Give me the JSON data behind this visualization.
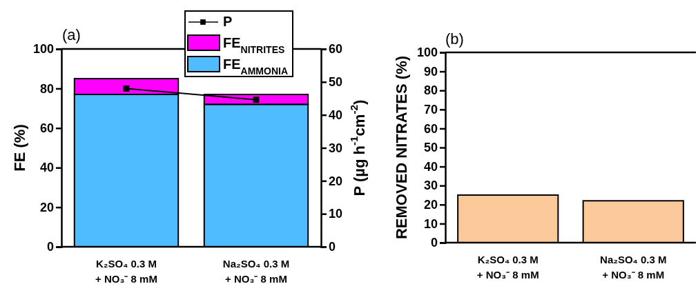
{
  "chart_data": [
    {
      "type": "bar",
      "title": "(a)",
      "categories": [
        "K₂SO₄ 0.3 M\n+ NO₃⁻ 8 mM",
        "Na₂SO₄ 0.3 M\n+ NO₃⁻ 8 mM"
      ],
      "stacked": true,
      "series": [
        {
          "name": "FE$_{AMMONIA}$",
          "color": "#4fbcff",
          "values": [
            77,
            72
          ]
        },
        {
          "name": "FE$_{NITRITES}$",
          "color": "#ff00ff",
          "values": [
            8,
            5
          ]
        },
        {
          "name": "P",
          "type": "line",
          "axis": "y2",
          "color": "#000000",
          "values": [
            48,
            44.6
          ]
        }
      ],
      "ylim": [
        0,
        100
      ],
      "yticks": [
        0,
        20,
        40,
        60,
        80,
        100
      ],
      "y2lim": [
        0,
        60
      ],
      "y2ticks": [
        0,
        10,
        20,
        30,
        40,
        50,
        60
      ],
      "ylabel": "FE (%)",
      "y2label": "P (µg h$^{-1}$cm$^{-2}$)",
      "legend": "top",
      "marker": "square"
    },
    {
      "type": "bar",
      "title": "(b)",
      "categories": [
        "K₂SO₄ 0.3 M\n+ NO₃⁻ 8 mM",
        "Na₂SO₄ 0.3 M\n+ NO₃⁻ 8 mM"
      ],
      "values": [
        25,
        22
      ],
      "color": "#fbc99a",
      "ylim": [
        0,
        100
      ],
      "yticks": [
        0,
        10,
        20,
        30,
        40,
        50,
        60,
        70,
        80,
        90,
        100
      ],
      "ylabel": "REMOVED NITRATES (%)"
    }
  ]
}
